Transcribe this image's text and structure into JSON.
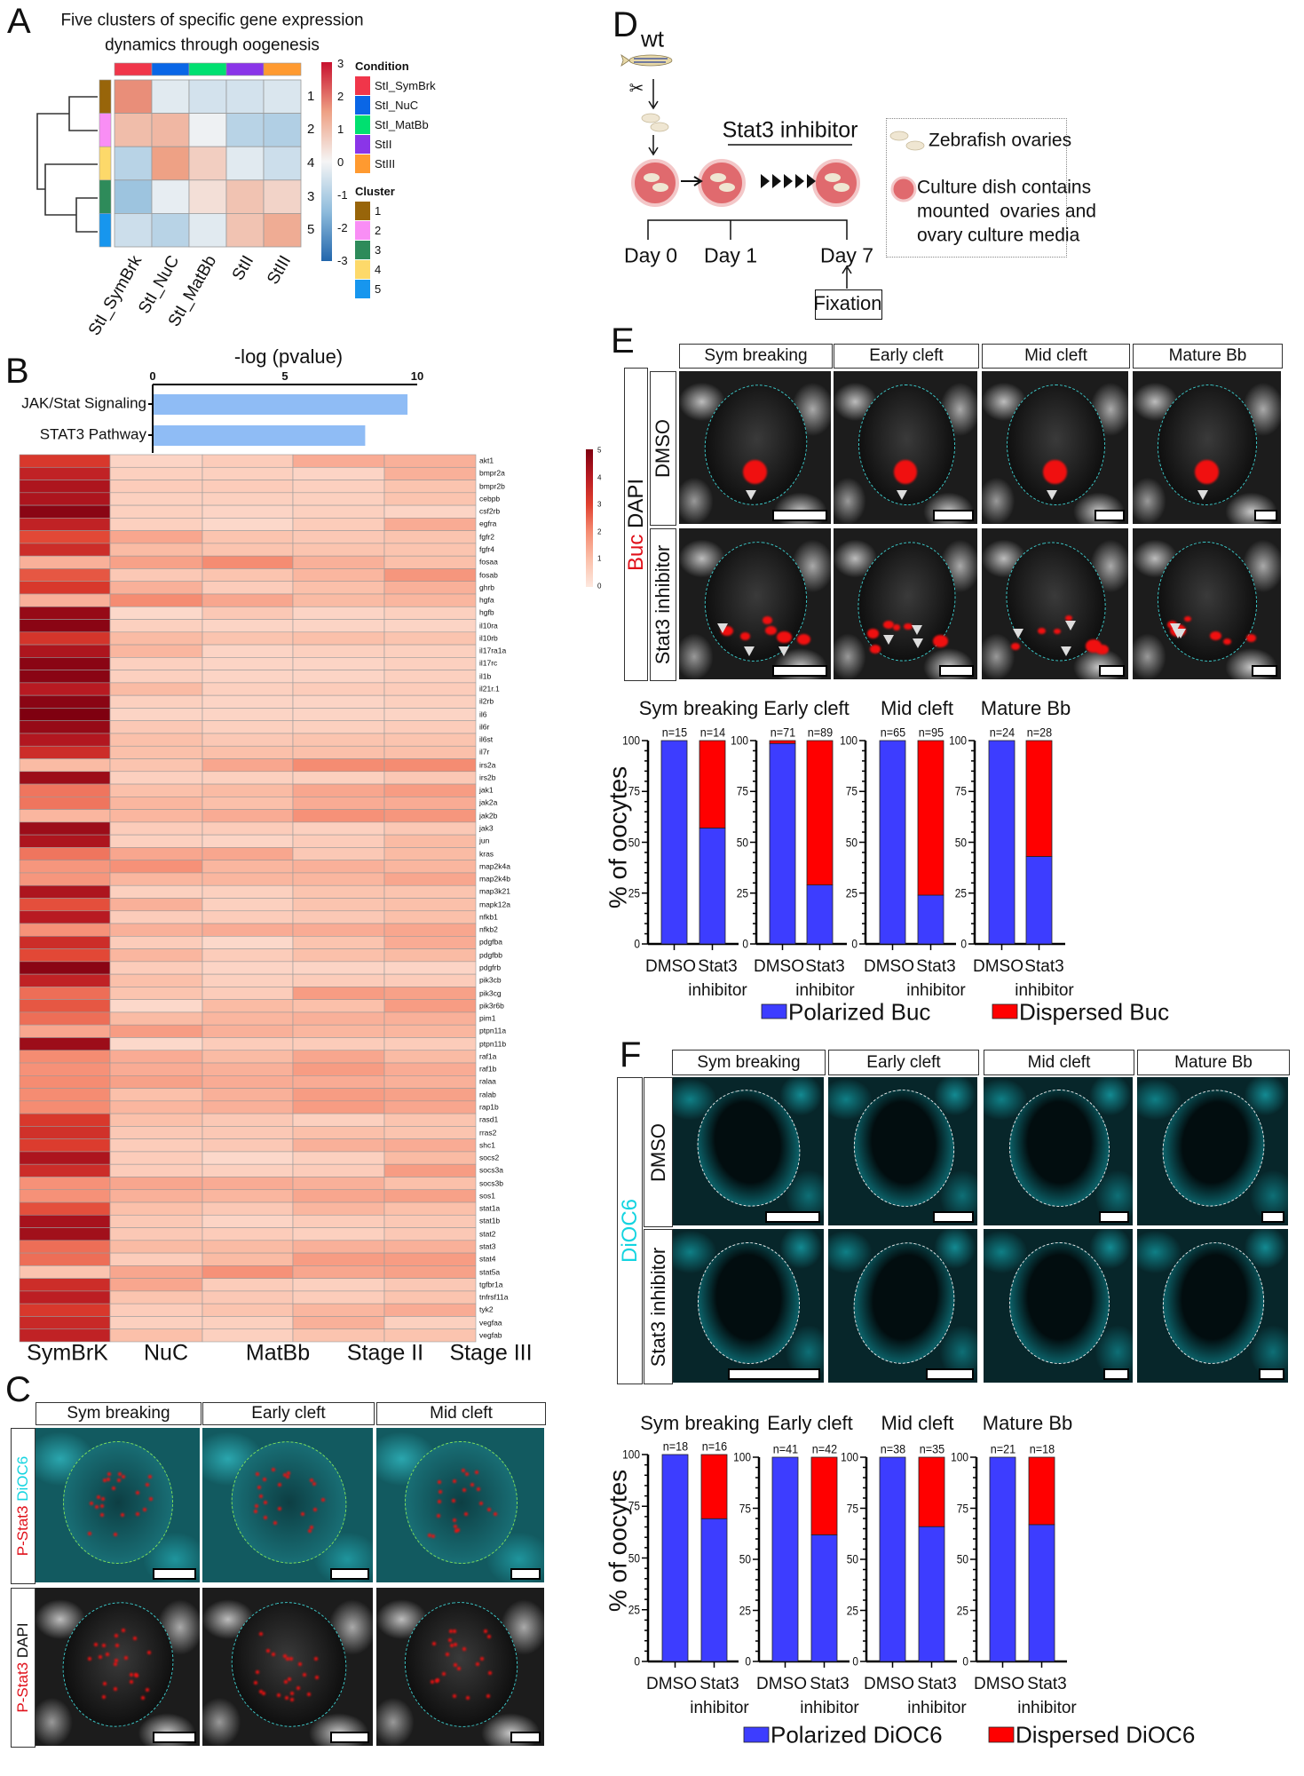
{
  "panels": {
    "A": {
      "label": "A"
    },
    "B": {
      "label": "B"
    },
    "C": {
      "label": "C",
      "columns": [
        "Sym breaking",
        "Early cleft",
        "Mid cleft"
      ],
      "rows": [
        {
          "stain": "P-Stat3",
          "counter": "DiOC6"
        },
        {
          "stain": "P-Stat3",
          "counter": "DAPI"
        }
      ]
    },
    "D": {
      "label": "D",
      "strain": "wt",
      "treatment": "Stat3 inhibitor",
      "days": [
        "Day 0",
        "Day 1",
        "Day 7"
      ],
      "fixation": "Fixation",
      "legend": {
        "ovaries": "Zebrafish ovaries",
        "dish": "Culture dish contains\nmounted  ovaries and\novary culture media"
      }
    },
    "E": {
      "label": "E",
      "columns": [
        "Sym breaking",
        "Early cleft",
        "Mid cleft",
        "Mature Bb"
      ],
      "stain": "Buc",
      "counter": "DAPI",
      "rows": [
        "DMSO",
        "Stat3 inhibitor"
      ],
      "bar_ylabel": "% of oocytes",
      "bar_legend": [
        "Polarized Buc",
        "Dispersed Buc"
      ]
    },
    "F": {
      "label": "F",
      "columns": [
        "Sym breaking",
        "Early cleft",
        "Mid cleft",
        "Mature Bb"
      ],
      "stain": "DiOC6",
      "rows": [
        "DMSO",
        "Stat3 inhibitor"
      ],
      "bar_ylabel": "% of oocytes",
      "bar_legend": [
        "Polarized DiOC6",
        "Dispersed DiOC6"
      ]
    }
  },
  "colors": {
    "polarized": "#3d3dff",
    "dispersed": "#ff0000",
    "pathway_bar": "#8fbcf5",
    "stain_red": "#e0101a",
    "dioc6_cyan": "#14d4e0"
  },
  "chart_data": [
    {
      "panel": "A",
      "type": "heatmap",
      "title_lines": [
        "Five clusters of specific gene expression",
        "dynamics through oogenesis"
      ],
      "columns": [
        "StI_SymBrk",
        "StI_NuC",
        "StI_MatBb",
        "StII",
        "StIII"
      ],
      "rows": [
        "1",
        "2",
        "4",
        "3",
        "5"
      ],
      "values": [
        [
          1.7,
          -0.3,
          -0.5,
          -0.5,
          -0.4
        ],
        [
          1.0,
          1.1,
          -0.1,
          -0.9,
          -1.0
        ],
        [
          -0.9,
          1.5,
          0.7,
          -0.3,
          -0.6
        ],
        [
          -1.3,
          -0.2,
          0.4,
          0.9,
          0.6
        ],
        [
          -0.6,
          -0.9,
          -0.3,
          0.9,
          1.3
        ]
      ],
      "colorbar": {
        "range": [
          -3,
          3
        ],
        "ticks": [
          "3",
          "2",
          "1",
          "0",
          "-1",
          "-2",
          "-3"
        ]
      },
      "dendrogram": true,
      "condition_legend": {
        "title": "Condition",
        "items": [
          {
            "label": "StI_SymBrk",
            "color": "#f0364a"
          },
          {
            "label": "StI_NuC",
            "color": "#0a66e6"
          },
          {
            "label": "StI_MatBb",
            "color": "#00e070"
          },
          {
            "label": "StII",
            "color": "#8a35e8"
          },
          {
            "label": "StIII",
            "color": "#ff9a30"
          }
        ]
      },
      "cluster_legend": {
        "title": "Cluster",
        "items": [
          {
            "label": "1",
            "color": "#98650a"
          },
          {
            "label": "2",
            "color": "#f98ef5"
          },
          {
            "label": "3",
            "color": "#2e8b5a"
          },
          {
            "label": "4",
            "color": "#fdd96a"
          },
          {
            "label": "5",
            "color": "#1796ee"
          }
        ]
      }
    },
    {
      "panel": "B",
      "type": "bar",
      "orientation": "horizontal",
      "xlabel": "-log (pvalue)",
      "categories": [
        "JAK/Stat Signaling",
        "STAT3 Pathway"
      ],
      "values": [
        9.6,
        8.0
      ],
      "xlim": [
        0,
        10
      ],
      "xticks": [
        "0",
        "5",
        "10"
      ]
    },
    {
      "panel": "B",
      "type": "heatmap",
      "columns": [
        "SymBrK",
        "NuC",
        "MatBb",
        "Stage II",
        "Stage III"
      ],
      "rows": [
        "akt1",
        "bmpr2a",
        "bmpr2b",
        "cebpb",
        "csf2rb",
        "egfra",
        "fgfr2",
        "fgfr4",
        "fosaa",
        "fosab",
        "ghrb",
        "hgfa",
        "hgfb",
        "il10ra",
        "il10rb",
        "il17ra1a",
        "il17rc",
        "il1b",
        "il21r.1",
        "il2rb",
        "il6",
        "il6r",
        "il6st",
        "il7r",
        "irs2a",
        "irs2b",
        "jak1",
        "jak2a",
        "jak2b",
        "jak3",
        "jun",
        "kras",
        "map2k4a",
        "map2k4b",
        "map3k21",
        "mapk12a",
        "nfkb1",
        "nfkb2",
        "pdgfba",
        "pdgfbb",
        "pdgfrb",
        "pik3cb",
        "pik3cg",
        "pik3r6b",
        "pim1",
        "ptpn11a",
        "ptpn11b",
        "raf1a",
        "raf1b",
        "ralaa",
        "ralab",
        "rap1b",
        "rasd1",
        "rras2",
        "shc1",
        "socs2",
        "socs3a",
        "socs3b",
        "sos1",
        "stat1a",
        "stat1b",
        "stat2",
        "stat3",
        "stat4",
        "stat5a",
        "tgfbr1a",
        "tnfrsf11a",
        "tyk2",
        "vegfaa",
        "vegfab"
      ],
      "values": [
        [
          3.2,
          0.5,
          0.7,
          1.4,
          1.3
        ],
        [
          3.8,
          0.6,
          0.6,
          0.5,
          1.3
        ],
        [
          4.2,
          0.7,
          0.7,
          0.6,
          0.9
        ],
        [
          4.2,
          0.6,
          0.6,
          0.6,
          0.9
        ],
        [
          4.8,
          0.6,
          0.5,
          0.6,
          0.5
        ],
        [
          3.8,
          0.6,
          0.4,
          0.7,
          1.4
        ],
        [
          2.9,
          1.5,
          0.9,
          0.8,
          0.9
        ],
        [
          3.5,
          1.1,
          0.9,
          0.9,
          0.9
        ],
        [
          1.3,
          1.6,
          2.0,
          1.3,
          1.0
        ],
        [
          2.7,
          0.8,
          0.9,
          1.2,
          1.8
        ],
        [
          3.2,
          1.3,
          0.7,
          1.0,
          1.3
        ],
        [
          1.3,
          2.0,
          1.5,
          1.1,
          1.2
        ],
        [
          4.6,
          0.4,
          0.8,
          0.5,
          0.6
        ],
        [
          4.8,
          0.6,
          0.5,
          0.5,
          0.5
        ],
        [
          3.3,
          1.1,
          0.9,
          1.0,
          0.9
        ],
        [
          4.2,
          1.2,
          0.5,
          0.6,
          0.6
        ],
        [
          4.8,
          0.6,
          0.5,
          0.5,
          0.6
        ],
        [
          4.8,
          0.6,
          0.5,
          0.5,
          0.6
        ],
        [
          4.0,
          1.1,
          0.6,
          0.7,
          0.7
        ],
        [
          4.8,
          0.6,
          0.5,
          0.5,
          0.6
        ],
        [
          5.0,
          0.5,
          0.5,
          0.5,
          0.5
        ],
        [
          4.6,
          0.8,
          0.6,
          0.6,
          0.7
        ],
        [
          4.1,
          1.0,
          0.8,
          0.9,
          0.9
        ],
        [
          3.5,
          1.0,
          1.0,
          1.0,
          1.0
        ],
        [
          1.1,
          0.9,
          1.5,
          2.0,
          2.0
        ],
        [
          4.5,
          0.6,
          0.6,
          0.6,
          0.8
        ],
        [
          2.3,
          1.0,
          1.1,
          1.5,
          1.7
        ],
        [
          2.3,
          1.2,
          1.0,
          1.4,
          1.4
        ],
        [
          1.2,
          1.2,
          1.4,
          1.9,
          1.8
        ],
        [
          4.5,
          0.7,
          0.7,
          0.6,
          0.8
        ],
        [
          4.2,
          0.6,
          0.5,
          0.7,
          1.1
        ],
        [
          2.3,
          1.5,
          1.5,
          0.8,
          1.1
        ],
        [
          1.8,
          1.9,
          1.2,
          1.3,
          1.2
        ],
        [
          1.8,
          1.2,
          1.2,
          1.2,
          1.5
        ],
        [
          4.2,
          0.6,
          0.6,
          0.9,
          0.9
        ],
        [
          2.8,
          1.3,
          0.6,
          0.9,
          1.0
        ],
        [
          4.0,
          0.7,
          0.7,
          0.8,
          1.0
        ],
        [
          1.9,
          1.3,
          1.4,
          1.4,
          1.5
        ],
        [
          3.5,
          0.7,
          0.4,
          0.9,
          1.4
        ],
        [
          2.9,
          1.2,
          0.7,
          1.0,
          1.1
        ],
        [
          4.8,
          0.7,
          0.5,
          0.5,
          0.5
        ],
        [
          3.8,
          1.0,
          0.6,
          0.7,
          0.7
        ],
        [
          2.4,
          0.9,
          0.7,
          1.7,
          1.6
        ],
        [
          2.7,
          0.4,
          1.1,
          1.0,
          1.7
        ],
        [
          2.4,
          1.1,
          1.2,
          1.3,
          1.3
        ],
        [
          1.5,
          1.7,
          1.3,
          1.2,
          1.2
        ],
        [
          4.5,
          0.4,
          0.7,
          0.7,
          0.7
        ],
        [
          2.0,
          1.4,
          1.1,
          1.5,
          1.1
        ],
        [
          1.9,
          1.4,
          1.3,
          1.7,
          1.4
        ],
        [
          2.0,
          1.6,
          1.4,
          1.4,
          1.3
        ],
        [
          2.0,
          1.0,
          1.3,
          1.7,
          1.6
        ],
        [
          2.0,
          1.2,
          1.3,
          1.7,
          1.5
        ],
        [
          3.2,
          1.0,
          0.8,
          0.6,
          0.9
        ],
        [
          3.4,
          0.8,
          0.8,
          1.0,
          0.9
        ],
        [
          3.1,
          0.7,
          0.8,
          1.3,
          1.4
        ],
        [
          4.2,
          0.7,
          0.4,
          0.6,
          1.1
        ],
        [
          3.5,
          0.7,
          0.6,
          0.7,
          1.7
        ],
        [
          1.9,
          1.5,
          1.4,
          1.3,
          1.0
        ],
        [
          1.9,
          1.3,
          1.2,
          1.5,
          1.6
        ],
        [
          2.8,
          1.0,
          0.8,
          1.2,
          1.0
        ],
        [
          4.3,
          0.8,
          0.5,
          0.7,
          0.8
        ],
        [
          4.4,
          0.8,
          0.7,
          0.6,
          0.8
        ],
        [
          2.4,
          1.1,
          1.1,
          1.3,
          1.3
        ],
        [
          2.4,
          0.7,
          1.1,
          1.7,
          1.7
        ],
        [
          0.9,
          1.5,
          1.9,
          1.5,
          1.6
        ],
        [
          3.5,
          1.5,
          0.7,
          0.6,
          0.8
        ],
        [
          3.9,
          0.9,
          0.8,
          0.7,
          0.9
        ],
        [
          3.2,
          0.7,
          0.9,
          1.2,
          1.4
        ],
        [
          3.6,
          0.6,
          0.6,
          1.3,
          0.6
        ],
        [
          3.8,
          1.0,
          0.6,
          0.9,
          0.9
        ]
      ],
      "colorbar": {
        "range": [
          0,
          5
        ],
        "ticks": [
          "5",
          "4",
          "3",
          "2",
          "1",
          "0"
        ]
      }
    },
    {
      "panel": "E",
      "type": "bar",
      "stacked": true,
      "title": "Sym breaking",
      "categories": [
        "DMSO",
        "Stat3\ninhibitor"
      ],
      "n_labels": [
        "n=15",
        "n=14"
      ],
      "series": [
        {
          "name": "Polarized Buc",
          "values": [
            100,
            57
          ]
        },
        {
          "name": "Dispersed Buc",
          "values": [
            0,
            43
          ]
        }
      ],
      "ylim": [
        0,
        100
      ],
      "yticks": [
        "0",
        "25",
        "50",
        "75",
        "100"
      ]
    },
    {
      "panel": "E",
      "type": "bar",
      "stacked": true,
      "title": "Early cleft",
      "categories": [
        "DMSO",
        "Stat3\ninhibitor"
      ],
      "n_labels": [
        "n=71",
        "n=89"
      ],
      "series": [
        {
          "name": "Polarized Buc",
          "values": [
            98.6,
            29
          ]
        },
        {
          "name": "Dispersed Buc",
          "values": [
            1.4,
            71
          ]
        }
      ],
      "ylim": [
        0,
        100
      ],
      "yticks": [
        "0",
        "25",
        "50",
        "75",
        "100"
      ]
    },
    {
      "panel": "E",
      "type": "bar",
      "stacked": true,
      "title": "Mid cleft",
      "categories": [
        "DMSO",
        "Stat3\ninhibitor"
      ],
      "n_labels": [
        "n=65",
        "n=95"
      ],
      "series": [
        {
          "name": "Polarized Buc",
          "values": [
            100,
            24
          ]
        },
        {
          "name": "Dispersed Buc",
          "values": [
            0,
            76
          ]
        }
      ],
      "ylim": [
        0,
        100
      ],
      "yticks": [
        "0",
        "25",
        "50",
        "75",
        "100"
      ]
    },
    {
      "panel": "E",
      "type": "bar",
      "stacked": true,
      "title": "Mature Bb",
      "categories": [
        "DMSO",
        "Stat3\ninhibitor"
      ],
      "n_labels": [
        "n=24",
        "n=28"
      ],
      "series": [
        {
          "name": "Polarized Buc",
          "values": [
            100,
            43
          ]
        },
        {
          "name": "Dispersed Buc",
          "values": [
            0,
            57
          ]
        }
      ],
      "ylim": [
        0,
        100
      ],
      "yticks": [
        "0",
        "25",
        "50",
        "75",
        "100"
      ]
    },
    {
      "panel": "F",
      "type": "bar",
      "stacked": true,
      "title": "Sym breaking",
      "categories": [
        "DMSO",
        "Stat3\ninhibitor"
      ],
      "n_labels": [
        "n=18",
        "n=16"
      ],
      "series": [
        {
          "name": "Polarized DiOC6",
          "values": [
            100,
            69
          ]
        },
        {
          "name": "Dispersed DiOC6",
          "values": [
            0,
            31
          ]
        }
      ],
      "ylim": [
        0,
        100
      ],
      "yticks": [
        "0",
        "25",
        "50",
        "75",
        "100"
      ]
    },
    {
      "panel": "F",
      "type": "bar",
      "stacked": true,
      "title": "Early cleft",
      "categories": [
        "DMSO",
        "Stat3\ninhibitor"
      ],
      "n_labels": [
        "n=41",
        "n=42"
      ],
      "series": [
        {
          "name": "Polarized DiOC6",
          "values": [
            100,
            62
          ]
        },
        {
          "name": "Dispersed DiOC6",
          "values": [
            0,
            38
          ]
        }
      ],
      "ylim": [
        0,
        100
      ],
      "yticks": [
        "0",
        "25",
        "50",
        "75",
        "100"
      ]
    },
    {
      "panel": "F",
      "type": "bar",
      "stacked": true,
      "title": "Mid cleft",
      "categories": [
        "DMSO",
        "Stat3\ninhibitor"
      ],
      "n_labels": [
        "n=38",
        "n=35"
      ],
      "series": [
        {
          "name": "Polarized DiOC6",
          "values": [
            100,
            66
          ]
        },
        {
          "name": "Dispersed DiOC6",
          "values": [
            0,
            34
          ]
        }
      ],
      "ylim": [
        0,
        100
      ],
      "yticks": [
        "0",
        "25",
        "50",
        "75",
        "100"
      ]
    },
    {
      "panel": "F",
      "type": "bar",
      "stacked": true,
      "title": "Mature Bb",
      "categories": [
        "DMSO",
        "Stat3\ninhibitor"
      ],
      "n_labels": [
        "n=21",
        "n=18"
      ],
      "series": [
        {
          "name": "Polarized DiOC6",
          "values": [
            100,
            67
          ]
        },
        {
          "name": "Dispersed DiOC6",
          "values": [
            0,
            33
          ]
        }
      ],
      "ylim": [
        0,
        100
      ],
      "yticks": [
        "0",
        "25",
        "50",
        "75",
        "100"
      ]
    }
  ]
}
